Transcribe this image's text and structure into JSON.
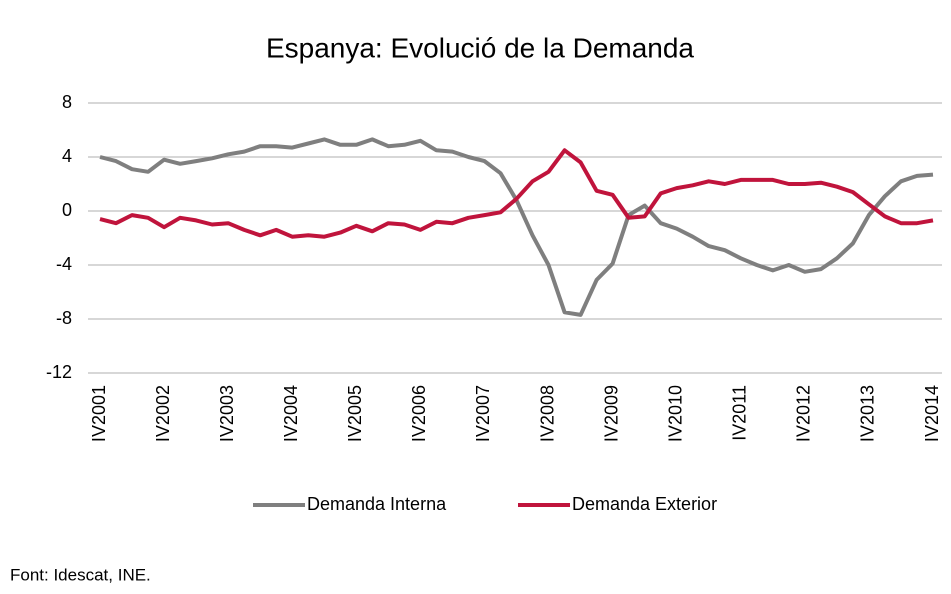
{
  "chart_data": {
    "type": "line",
    "title": "Espanya: Evolució de la Demanda",
    "source": "Font: Idescat, INE.",
    "categories": [
      "IV2001",
      null,
      null,
      null,
      "IV2002",
      null,
      null,
      null,
      "IV2003",
      null,
      null,
      null,
      "IV2004",
      null,
      null,
      null,
      "IV2005",
      null,
      null,
      null,
      "IV2006",
      null,
      null,
      null,
      "IV2007",
      null,
      null,
      null,
      "IV2008",
      null,
      null,
      null,
      "IV2009",
      null,
      null,
      null,
      "IV2010",
      null,
      null,
      null,
      "IV2011",
      null,
      null,
      null,
      "IV2012",
      null,
      null,
      null,
      "IV2013",
      null,
      null,
      null,
      "IV2014"
    ],
    "series": [
      {
        "name": "Demanda Interna",
        "color": "#7f7f7f",
        "values": [
          4.0,
          3.7,
          3.1,
          2.9,
          3.8,
          3.5,
          3.7,
          3.9,
          4.2,
          4.4,
          4.8,
          4.8,
          4.7,
          5.0,
          5.3,
          4.9,
          4.9,
          5.3,
          4.8,
          4.9,
          5.2,
          4.5,
          4.4,
          4.0,
          3.7,
          2.8,
          0.8,
          -1.8,
          -4.0,
          -7.5,
          -7.7,
          -5.1,
          -3.9,
          -0.3,
          0.4,
          -0.9,
          -1.3,
          -1.9,
          -2.6,
          -2.9,
          -3.5,
          -4.0,
          -4.4,
          -4.0,
          -4.5,
          -4.3,
          -3.5,
          -2.4,
          -0.3,
          1.1,
          2.2,
          2.6,
          2.7
        ]
      },
      {
        "name": "Demanda Exterior",
        "color": "#c0143c",
        "values": [
          -0.6,
          -0.9,
          -0.3,
          -0.5,
          -1.2,
          -0.5,
          -0.7,
          -1.0,
          -0.9,
          -1.4,
          -1.8,
          -1.4,
          -1.9,
          -1.8,
          -1.9,
          -1.6,
          -1.1,
          -1.5,
          -0.9,
          -1.0,
          -1.4,
          -0.8,
          -0.9,
          -0.5,
          -0.3,
          -0.1,
          0.9,
          2.2,
          2.9,
          4.5,
          3.6,
          1.5,
          1.2,
          -0.5,
          -0.4,
          1.3,
          1.7,
          1.9,
          2.2,
          2.0,
          2.3,
          2.3,
          2.3,
          2.0,
          2.0,
          2.1,
          1.8,
          1.4,
          0.5,
          -0.4,
          -0.9,
          -0.9,
          -0.7
        ]
      }
    ],
    "ylim": [
      -12,
      8
    ],
    "yticks": [
      -12,
      -8,
      -4,
      0,
      4,
      8
    ],
    "grid": true,
    "legend": "bottom"
  }
}
